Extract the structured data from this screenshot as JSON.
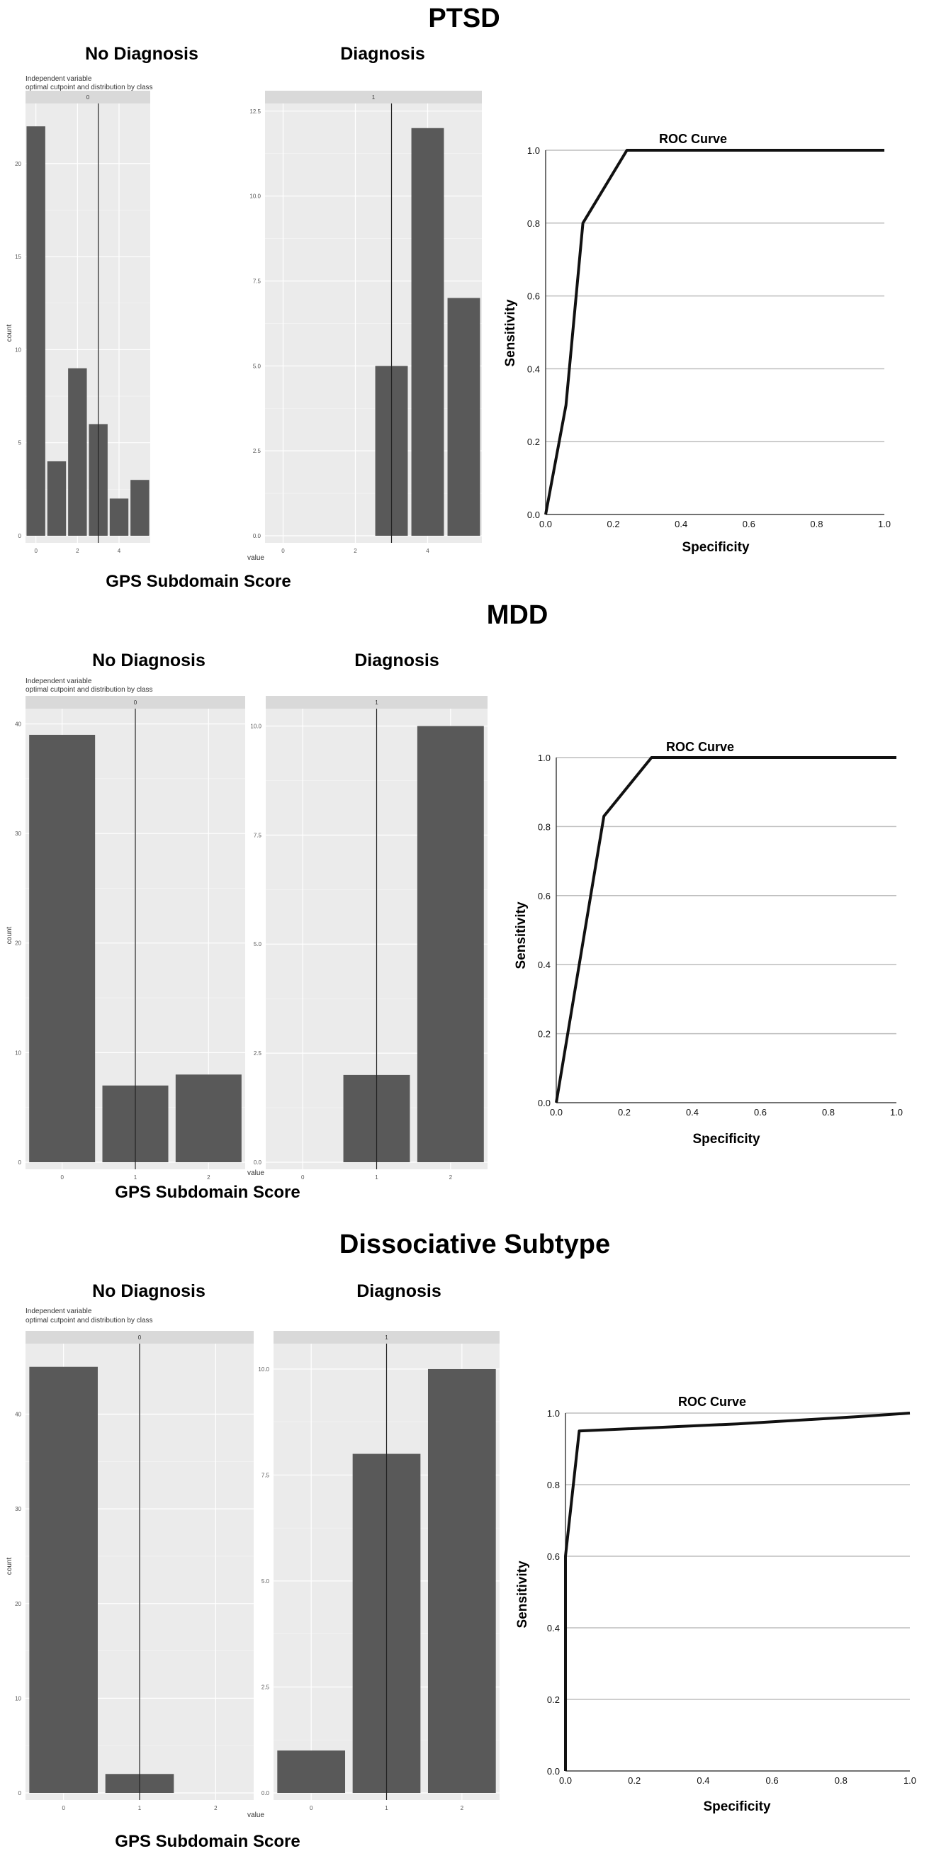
{
  "sections": [
    {
      "title": "PTSD",
      "no_diagnosis_header": "No Diagnosis",
      "diagnosis_header": "Diagnosis",
      "x_axis_caption": "GPS Subdomain Score",
      "plot_caption_line1": "Independent variable",
      "plot_caption_line2": "optimal cutpoint and distribution by class",
      "count_label": "count",
      "value_label": "value",
      "roc_title": "ROC Curve",
      "roc_ylabel": "Sensitivity",
      "roc_xlabel": "Specificity"
    },
    {
      "title": "MDD",
      "no_diagnosis_header": "No Diagnosis",
      "diagnosis_header": "Diagnosis",
      "x_axis_caption": "GPS Subdomain Score",
      "plot_caption_line1": "Independent variable",
      "plot_caption_line2": "optimal cutpoint and distribution by class",
      "count_label": "count",
      "value_label": "value",
      "roc_title": "ROC Curve",
      "roc_ylabel": "Sensitivity",
      "roc_xlabel": "Specificity"
    },
    {
      "title": "Dissociative Subtype",
      "no_diagnosis_header": "No Diagnosis",
      "diagnosis_header": "Diagnosis",
      "x_axis_caption": "GPS Subdomain Score",
      "plot_caption_line1": "Independent variable",
      "plot_caption_line2": "optimal cutpoint and distribution by class",
      "count_label": "count",
      "value_label": "value",
      "roc_title": "ROC Curve",
      "roc_ylabel": "Sensitivity",
      "roc_xlabel": "Specificity"
    }
  ],
  "chart_data": [
    {
      "type": "bar",
      "section": "PTSD",
      "panel": "No Diagnosis",
      "facet_label": "0",
      "x": [
        0,
        1,
        2,
        3,
        4,
        5
      ],
      "values": [
        22,
        4,
        9,
        6,
        2,
        3
      ],
      "cutpoint": 3,
      "xlim": [
        -0.5,
        5.5
      ],
      "ylim": [
        0,
        23
      ],
      "xticks": [
        0,
        2,
        4
      ],
      "yticks": [
        0,
        5,
        10,
        15,
        20
      ],
      "bar_color": "#595959"
    },
    {
      "type": "bar",
      "section": "PTSD",
      "panel": "Diagnosis",
      "facet_label": "1",
      "x": [
        3,
        4,
        5
      ],
      "values": [
        5,
        12,
        7
      ],
      "cutpoint": 3,
      "xlim": [
        -0.5,
        5.5
      ],
      "ylim": [
        0,
        12.6
      ],
      "xticks": [
        0,
        2,
        4
      ],
      "yticks": [
        0.0,
        2.5,
        5.0,
        7.5,
        10.0,
        12.5
      ],
      "bar_color": "#595959"
    },
    {
      "type": "line",
      "section": "PTSD",
      "title": "ROC Curve",
      "xlabel": "Specificity",
      "ylabel": "Sensitivity",
      "x": [
        0.0,
        0.06,
        0.11,
        0.24,
        1.0
      ],
      "y": [
        0.0,
        0.3,
        0.8,
        1.0,
        1.0
      ],
      "xlim": [
        0,
        1
      ],
      "ylim": [
        0,
        1
      ],
      "ticks": [
        0.0,
        0.2,
        0.4,
        0.6,
        0.8,
        1.0
      ],
      "grid": true
    },
    {
      "type": "bar",
      "section": "MDD",
      "panel": "No Diagnosis",
      "facet_label": "0",
      "x": [
        0,
        1,
        2
      ],
      "values": [
        39,
        7,
        8
      ],
      "cutpoint": 1,
      "xlim": [
        -0.5,
        2.5
      ],
      "ylim": [
        0,
        41
      ],
      "xticks": [
        0,
        1,
        2
      ],
      "yticks": [
        0,
        10,
        20,
        30,
        40
      ],
      "bar_color": "#595959"
    },
    {
      "type": "bar",
      "section": "MDD",
      "panel": "Diagnosis",
      "facet_label": "1",
      "x": [
        1,
        2
      ],
      "values": [
        2,
        10
      ],
      "cutpoint": 1,
      "xlim": [
        -0.5,
        2.5
      ],
      "ylim": [
        0,
        10.3
      ],
      "xticks": [
        0,
        1,
        2
      ],
      "yticks": [
        0.0,
        2.5,
        5.0,
        7.5,
        10.0
      ],
      "bar_color": "#595959"
    },
    {
      "type": "line",
      "section": "MDD",
      "title": "ROC Curve",
      "xlabel": "Specificity",
      "ylabel": "Sensitivity",
      "x": [
        0.0,
        0.14,
        0.28,
        1.0
      ],
      "y": [
        0.0,
        0.83,
        1.0,
        1.0
      ],
      "xlim": [
        0,
        1
      ],
      "ylim": [
        0,
        1
      ],
      "ticks": [
        0.0,
        0.2,
        0.4,
        0.6,
        0.8,
        1.0
      ],
      "grid": true
    },
    {
      "type": "bar",
      "section": "Dissociative Subtype",
      "panel": "No Diagnosis",
      "facet_label": "0",
      "x": [
        0,
        1
      ],
      "values": [
        45,
        2
      ],
      "cutpoint": 1,
      "xlim": [
        -0.5,
        2.5
      ],
      "ylim": [
        0,
        47
      ],
      "xticks": [
        0,
        1,
        2
      ],
      "yticks": [
        0,
        10,
        20,
        30,
        40
      ],
      "bar_color": "#595959"
    },
    {
      "type": "bar",
      "section": "Dissociative Subtype",
      "panel": "Diagnosis",
      "facet_label": "1",
      "x": [
        0,
        1,
        2
      ],
      "values": [
        1,
        8,
        10
      ],
      "cutpoint": 1,
      "xlim": [
        -0.5,
        2.5
      ],
      "ylim": [
        0,
        10.5
      ],
      "xticks": [
        0,
        1,
        2
      ],
      "yticks": [
        0.0,
        2.5,
        5.0,
        7.5,
        10.0
      ],
      "bar_color": "#595959"
    },
    {
      "type": "line",
      "section": "Dissociative Subtype",
      "title": "ROC Curve",
      "xlabel": "Specificity",
      "ylabel": "Sensitivity",
      "x": [
        0.0,
        0.0,
        0.04,
        0.5,
        0.85,
        1.0
      ],
      "y": [
        0.0,
        0.6,
        0.95,
        0.97,
        0.99,
        1.0
      ],
      "xlim": [
        0,
        1
      ],
      "ylim": [
        0,
        1
      ],
      "ticks": [
        0.0,
        0.2,
        0.4,
        0.6,
        0.8,
        1.0
      ],
      "grid": true
    }
  ]
}
